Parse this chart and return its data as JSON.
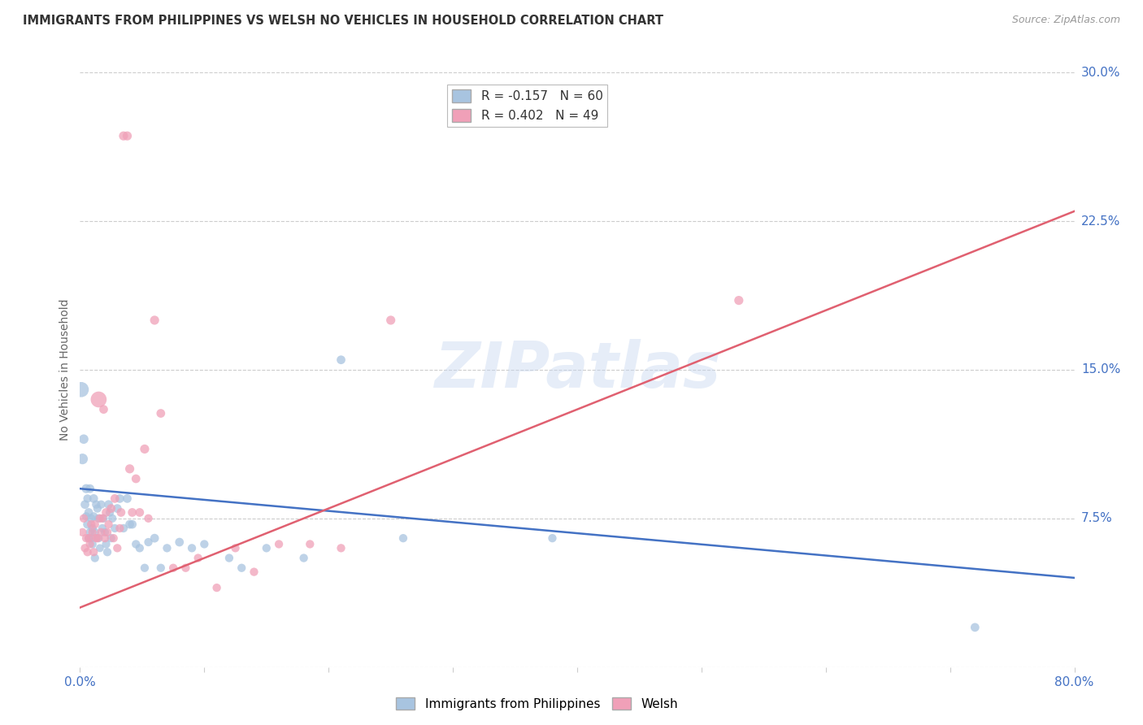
{
  "title": "IMMIGRANTS FROM PHILIPPINES VS WELSH NO VEHICLES IN HOUSEHOLD CORRELATION CHART",
  "source": "Source: ZipAtlas.com",
  "ylabel": "No Vehicles in Household",
  "xlim": [
    0.0,
    0.8
  ],
  "ylim": [
    0.0,
    0.3
  ],
  "xticks": [
    0.0,
    0.1,
    0.2,
    0.3,
    0.4,
    0.5,
    0.6,
    0.7,
    0.8
  ],
  "xticklabels": [
    "0.0%",
    "",
    "",
    "",
    "",
    "",
    "",
    "",
    "80.0%"
  ],
  "yticks": [
    0.0,
    0.075,
    0.15,
    0.225,
    0.3
  ],
  "yticklabels_right": [
    "",
    "7.5%",
    "15.0%",
    "22.5%",
    "30.0%"
  ],
  "blue_color": "#a8c4e0",
  "pink_color": "#f0a0b8",
  "blue_line_color": "#4472c4",
  "pink_line_color": "#e06070",
  "legend_blue_label": "R = -0.157   N = 60",
  "legend_pink_label": "R = 0.402   N = 49",
  "legend_label_blue": "Immigrants from Philippines",
  "legend_label_pink": "Welsh",
  "watermark": "ZIPatlas",
  "blue_scatter_x": [
    0.001,
    0.002,
    0.003,
    0.004,
    0.005,
    0.005,
    0.006,
    0.006,
    0.007,
    0.007,
    0.008,
    0.008,
    0.009,
    0.009,
    0.01,
    0.01,
    0.011,
    0.011,
    0.012,
    0.012,
    0.013,
    0.014,
    0.015,
    0.015,
    0.016,
    0.017,
    0.018,
    0.019,
    0.02,
    0.021,
    0.022,
    0.023,
    0.024,
    0.025,
    0.026,
    0.028,
    0.03,
    0.032,
    0.035,
    0.038,
    0.04,
    0.042,
    0.045,
    0.048,
    0.052,
    0.055,
    0.06,
    0.065,
    0.07,
    0.08,
    0.09,
    0.1,
    0.12,
    0.13,
    0.15,
    0.18,
    0.21,
    0.26,
    0.38,
    0.72
  ],
  "blue_scatter_y": [
    0.14,
    0.105,
    0.115,
    0.082,
    0.09,
    0.076,
    0.072,
    0.085,
    0.065,
    0.078,
    0.068,
    0.09,
    0.075,
    0.065,
    0.07,
    0.062,
    0.076,
    0.085,
    0.068,
    0.055,
    0.082,
    0.08,
    0.075,
    0.065,
    0.06,
    0.082,
    0.07,
    0.075,
    0.068,
    0.062,
    0.058,
    0.082,
    0.078,
    0.065,
    0.075,
    0.07,
    0.08,
    0.085,
    0.07,
    0.085,
    0.072,
    0.072,
    0.062,
    0.06,
    0.05,
    0.063,
    0.065,
    0.05,
    0.06,
    0.063,
    0.06,
    0.062,
    0.055,
    0.05,
    0.06,
    0.055,
    0.155,
    0.065,
    0.065,
    0.02
  ],
  "blue_scatter_size": [
    180,
    90,
    70,
    60,
    65,
    55,
    60,
    55,
    55,
    60,
    55,
    60,
    55,
    55,
    55,
    55,
    55,
    60,
    55,
    55,
    55,
    55,
    55,
    55,
    50,
    55,
    55,
    55,
    55,
    55,
    55,
    60,
    55,
    55,
    55,
    55,
    60,
    60,
    55,
    60,
    60,
    60,
    55,
    55,
    55,
    55,
    60,
    55,
    55,
    60,
    55,
    55,
    55,
    55,
    55,
    55,
    60,
    55,
    55,
    60
  ],
  "pink_scatter_x": [
    0.002,
    0.003,
    0.004,
    0.005,
    0.006,
    0.007,
    0.008,
    0.009,
    0.01,
    0.011,
    0.012,
    0.013,
    0.014,
    0.015,
    0.016,
    0.017,
    0.018,
    0.019,
    0.02,
    0.021,
    0.022,
    0.023,
    0.025,
    0.027,
    0.028,
    0.03,
    0.032,
    0.033,
    0.035,
    0.038,
    0.04,
    0.042,
    0.045,
    0.048,
    0.052,
    0.055,
    0.06,
    0.065,
    0.075,
    0.085,
    0.095,
    0.11,
    0.125,
    0.14,
    0.16,
    0.185,
    0.21,
    0.25,
    0.53
  ],
  "pink_scatter_y": [
    0.068,
    0.075,
    0.06,
    0.065,
    0.058,
    0.065,
    0.062,
    0.072,
    0.068,
    0.058,
    0.072,
    0.065,
    0.065,
    0.135,
    0.075,
    0.068,
    0.075,
    0.13,
    0.065,
    0.078,
    0.068,
    0.072,
    0.08,
    0.065,
    0.085,
    0.06,
    0.07,
    0.078,
    0.268,
    0.268,
    0.1,
    0.078,
    0.095,
    0.078,
    0.11,
    0.075,
    0.175,
    0.128,
    0.05,
    0.05,
    0.055,
    0.04,
    0.06,
    0.048,
    0.062,
    0.062,
    0.06,
    0.175,
    0.185
  ],
  "pink_scatter_size": [
    55,
    55,
    55,
    55,
    55,
    55,
    55,
    55,
    55,
    55,
    55,
    55,
    55,
    200,
    55,
    55,
    55,
    60,
    55,
    60,
    55,
    55,
    60,
    55,
    60,
    55,
    55,
    60,
    65,
    65,
    65,
    60,
    60,
    60,
    65,
    55,
    65,
    60,
    55,
    55,
    55,
    55,
    55,
    55,
    55,
    55,
    55,
    65,
    65
  ],
  "blue_line_x": [
    0.0,
    0.8
  ],
  "blue_line_y": [
    0.09,
    0.045
  ],
  "pink_line_x": [
    0.0,
    0.8
  ],
  "pink_line_y": [
    0.03,
    0.23
  ]
}
